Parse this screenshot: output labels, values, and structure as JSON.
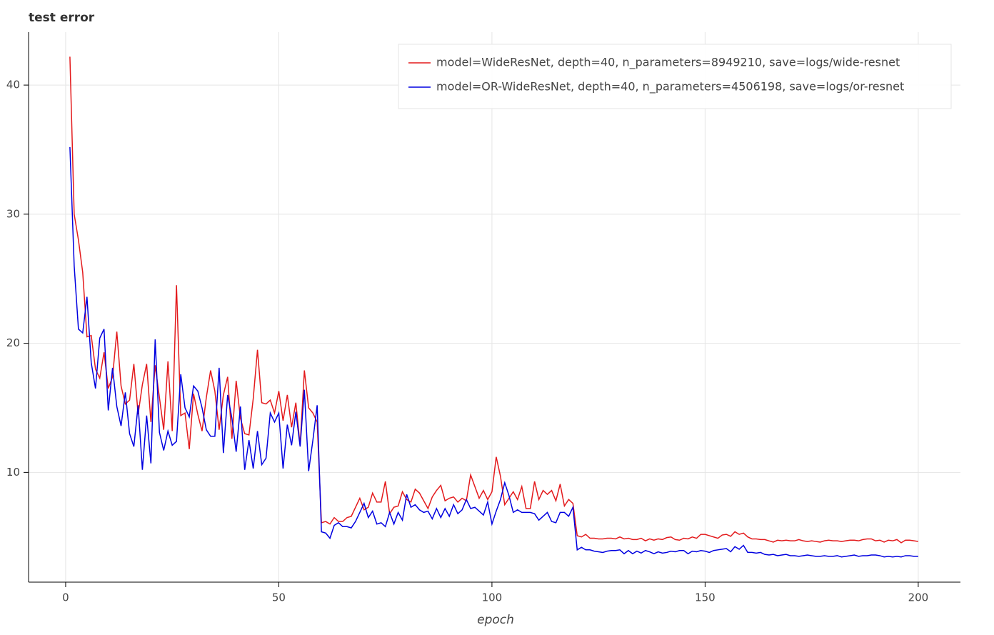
{
  "chart_data": {
    "type": "line",
    "title": "test error",
    "x_label": "epoch",
    "x": [
      1,
      2,
      3,
      4,
      5,
      6,
      7,
      8,
      9,
      10,
      11,
      12,
      13,
      14,
      15,
      16,
      17,
      18,
      19,
      20,
      21,
      22,
      23,
      24,
      25,
      26,
      27,
      28,
      29,
      30,
      31,
      32,
      33,
      34,
      35,
      36,
      37,
      38,
      39,
      40,
      41,
      42,
      43,
      44,
      45,
      46,
      47,
      48,
      49,
      50,
      51,
      52,
      53,
      54,
      55,
      56,
      57,
      58,
      59,
      60,
      61,
      62,
      63,
      64,
      65,
      66,
      67,
      68,
      69,
      70,
      71,
      72,
      73,
      74,
      75,
      76,
      77,
      78,
      79,
      80,
      81,
      82,
      83,
      84,
      85,
      86,
      87,
      88,
      89,
      90,
      91,
      92,
      93,
      94,
      95,
      96,
      97,
      98,
      99,
      100,
      101,
      102,
      103,
      104,
      105,
      106,
      107,
      108,
      109,
      110,
      111,
      112,
      113,
      114,
      115,
      116,
      117,
      118,
      119,
      120,
      121,
      122,
      123,
      124,
      125,
      126,
      127,
      128,
      129,
      130,
      131,
      132,
      133,
      134,
      135,
      136,
      137,
      138,
      139,
      140,
      141,
      142,
      143,
      144,
      145,
      146,
      147,
      148,
      149,
      150,
      151,
      152,
      153,
      154,
      155,
      156,
      157,
      158,
      159,
      160,
      161,
      162,
      163,
      164,
      165,
      166,
      167,
      168,
      169,
      170,
      171,
      172,
      173,
      174,
      175,
      176,
      177,
      178,
      179,
      180,
      181,
      182,
      183,
      184,
      185,
      186,
      187,
      188,
      189,
      190,
      191,
      192,
      193,
      194,
      195,
      196,
      197,
      198,
      199,
      200
    ],
    "series": [
      {
        "name": "model=WideResNet, depth=40, n_parameters=8949210, save=logs/wide-resnet",
        "color": "#e31a1c",
        "values": [
          42.2,
          30.0,
          28,
          25.5,
          20.5,
          20.6,
          18,
          17.3,
          19.3,
          16.5,
          17.4,
          20.9,
          16.7,
          15.3,
          15.6,
          18.4,
          14.5,
          16.8,
          18.4,
          13.9,
          18.3,
          15.8,
          13.3,
          18.6,
          13.2,
          24.5,
          14.4,
          14.6,
          11.8,
          16.1,
          14.5,
          13.2,
          15.8,
          17.9,
          16.3,
          13.3,
          16.0,
          17.4,
          12.6,
          17.1,
          14.2,
          13.0,
          12.9,
          15.7,
          19.5,
          15.4,
          15.3,
          15.6,
          14.6,
          16.3,
          14.0,
          16.0,
          13.5,
          15.4,
          12.1,
          17.9,
          15.0,
          14.6,
          13.9,
          6.1,
          6.2,
          6.0,
          6.5,
          6.2,
          6.2,
          6.5,
          6.6,
          7.3,
          8.0,
          7.1,
          7.3,
          8.4,
          7.7,
          7.7,
          9.3,
          6.8,
          7.3,
          7.4,
          8.5,
          7.9,
          7.7,
          8.7,
          8.4,
          7.8,
          7.2,
          8.1,
          8.6,
          9.0,
          7.8,
          8.0,
          8.1,
          7.7,
          8.0,
          7.8,
          9.8,
          8.9,
          8.0,
          8.6,
          7.9,
          8.5,
          11.2,
          9.7,
          7.5,
          8.0,
          8.5,
          7.9,
          8.9,
          7.2,
          7.2,
          9.3,
          7.9,
          8.6,
          8.3,
          8.6,
          7.8,
          9.1,
          7.4,
          7.9,
          7.6,
          5.1,
          5.0,
          5.2,
          4.9,
          4.9,
          4.85,
          4.85,
          4.9,
          4.9,
          4.85,
          5.0,
          4.85,
          4.9,
          4.8,
          4.8,
          4.9,
          4.7,
          4.85,
          4.75,
          4.85,
          4.8,
          4.95,
          5.0,
          4.8,
          4.75,
          4.9,
          4.85,
          5.0,
          4.9,
          5.2,
          5.2,
          5.1,
          5.0,
          4.9,
          5.15,
          5.2,
          5.05,
          5.4,
          5.2,
          5.3,
          5.0,
          4.85,
          4.85,
          4.8,
          4.8,
          4.7,
          4.6,
          4.75,
          4.7,
          4.75,
          4.7,
          4.7,
          4.8,
          4.7,
          4.65,
          4.7,
          4.65,
          4.6,
          4.7,
          4.75,
          4.7,
          4.7,
          4.65,
          4.7,
          4.75,
          4.75,
          4.7,
          4.8,
          4.85,
          4.85,
          4.7,
          4.75,
          4.6,
          4.75,
          4.7,
          4.8,
          4.55,
          4.75,
          4.75,
          4.7,
          4.65
        ]
      },
      {
        "name": "model=OR-WideResNet, depth=40, n_parameters=4506198, save=logs/or-resnet",
        "color": "#0000e0",
        "values": [
          35.2,
          26,
          21.1,
          20.8,
          23.6,
          18.5,
          16.5,
          20.4,
          21.1,
          14.8,
          18.1,
          15.1,
          13.6,
          16.2,
          13.0,
          12.0,
          15.2,
          10.2,
          14.4,
          10.7,
          20.3,
          13.1,
          11.7,
          13.2,
          12.1,
          12.4,
          17.6,
          15.0,
          14.3,
          16.7,
          16.3,
          15.0,
          13.3,
          12.8,
          12.8,
          18.1,
          11.5,
          16.0,
          14.2,
          11.6,
          15.1,
          10.2,
          12.5,
          10.3,
          13.2,
          10.6,
          11.1,
          14.6,
          13.9,
          14.6,
          10.3,
          13.7,
          12.1,
          14.7,
          12.0,
          16.4,
          10.1,
          12.5,
          15.2,
          5.4,
          5.3,
          4.9,
          5.9,
          6.1,
          5.8,
          5.8,
          5.7,
          6.2,
          6.9,
          7.6,
          6.5,
          7.0,
          6.0,
          6.1,
          5.8,
          6.9,
          6.0,
          6.9,
          6.3,
          8.3,
          7.3,
          7.5,
          7.1,
          6.9,
          7.0,
          6.4,
          7.2,
          6.5,
          7.2,
          6.6,
          7.5,
          6.8,
          7.1,
          7.9,
          7.2,
          7.3,
          7.0,
          6.7,
          7.7,
          6.0,
          7.0,
          7.9,
          9.2,
          8.2,
          6.9,
          7.1,
          6.9,
          6.9,
          6.9,
          6.8,
          6.3,
          6.6,
          6.9,
          6.2,
          6.1,
          6.9,
          6.9,
          6.6,
          7.3,
          4.0,
          4.2,
          4.0,
          4.0,
          3.9,
          3.85,
          3.8,
          3.9,
          3.95,
          3.95,
          4.0,
          3.7,
          3.95,
          3.7,
          3.9,
          3.75,
          3.95,
          3.85,
          3.7,
          3.85,
          3.75,
          3.8,
          3.9,
          3.85,
          3.95,
          3.95,
          3.7,
          3.9,
          3.85,
          3.95,
          3.9,
          3.8,
          3.95,
          4.0,
          4.05,
          4.1,
          3.85,
          4.25,
          4.05,
          4.35,
          3.8,
          3.8,
          3.75,
          3.8,
          3.65,
          3.6,
          3.65,
          3.55,
          3.6,
          3.65,
          3.55,
          3.55,
          3.5,
          3.55,
          3.6,
          3.55,
          3.5,
          3.5,
          3.55,
          3.5,
          3.5,
          3.55,
          3.45,
          3.5,
          3.55,
          3.6,
          3.5,
          3.55,
          3.55,
          3.6,
          3.6,
          3.55,
          3.45,
          3.5,
          3.45,
          3.5,
          3.45,
          3.55,
          3.55,
          3.5,
          3.5
        ]
      }
    ],
    "xlim": [
      -8.7,
      209.9
    ],
    "ylim": [
      1.5,
      44.1
    ],
    "xticks": [
      0,
      50,
      100,
      150,
      200
    ],
    "yticks": [
      10,
      20,
      30,
      40
    ],
    "grid": true,
    "legend": "top-right"
  }
}
